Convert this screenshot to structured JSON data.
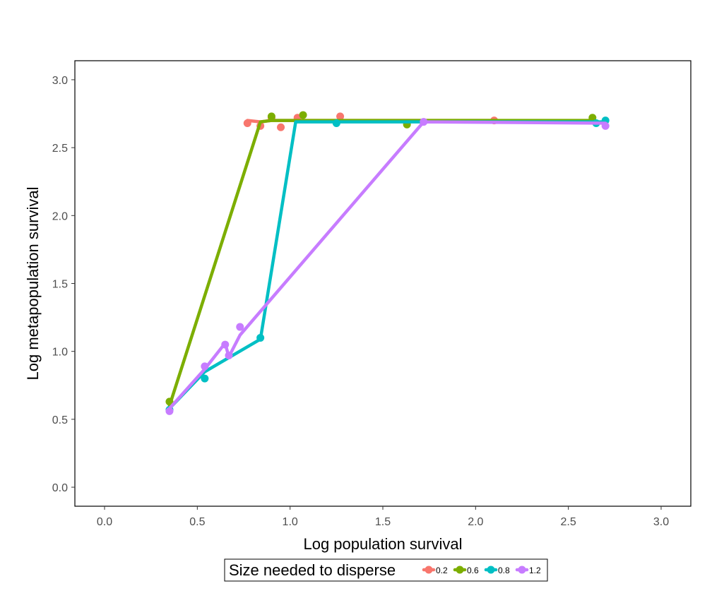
{
  "chart_data": {
    "type": "line",
    "title": "",
    "xlabel": "Log population survival",
    "ylabel": "Log metapopulation survival",
    "xlim": [
      -0.16,
      3.16
    ],
    "ylim": [
      -0.14,
      3.14
    ],
    "x_ticks": [
      "0.0",
      "0.5",
      "1.0",
      "1.5",
      "2.0",
      "2.5",
      "3.0"
    ],
    "y_ticks": [
      "0.0",
      "0.5",
      "1.0",
      "1.5",
      "2.0",
      "2.5",
      "3.0"
    ],
    "grid": false,
    "legend": {
      "title": "Size needed to disperse",
      "position": "bottom"
    },
    "series": [
      {
        "name": "0.2",
        "color": "#F8766D",
        "points": [
          [
            0.77,
            2.68
          ],
          [
            0.84,
            2.66
          ],
          [
            0.9,
            2.72
          ],
          [
            0.95,
            2.65
          ],
          [
            1.04,
            2.72
          ],
          [
            1.27,
            2.73
          ],
          [
            2.1,
            2.7
          ]
        ],
        "line": [
          [
            0.77,
            2.7
          ],
          [
            0.84,
            2.69
          ],
          [
            0.9,
            2.7
          ],
          [
            0.95,
            2.7
          ],
          [
            1.04,
            2.7
          ],
          [
            1.27,
            2.7
          ],
          [
            2.1,
            2.7
          ]
        ]
      },
      {
        "name": "0.6",
        "color": "#7CAE00",
        "points": [
          [
            0.35,
            0.63
          ],
          [
            0.9,
            2.73
          ],
          [
            1.07,
            2.74
          ],
          [
            1.63,
            2.67
          ],
          [
            2.63,
            2.72
          ]
        ],
        "line": [
          [
            0.35,
            0.6
          ],
          [
            0.84,
            2.69
          ],
          [
            0.9,
            2.7
          ],
          [
            1.07,
            2.7
          ],
          [
            1.63,
            2.7
          ],
          [
            2.63,
            2.7
          ]
        ]
      },
      {
        "name": "0.8",
        "color": "#00BFC4",
        "points": [
          [
            0.35,
            0.57
          ],
          [
            0.54,
            0.8
          ],
          [
            0.84,
            1.1
          ],
          [
            1.25,
            2.68
          ],
          [
            2.65,
            2.68
          ],
          [
            2.7,
            2.7
          ]
        ],
        "line": [
          [
            0.35,
            0.58
          ],
          [
            0.54,
            0.85
          ],
          [
            0.84,
            1.09
          ],
          [
            1.03,
            2.69
          ],
          [
            1.25,
            2.69
          ],
          [
            2.65,
            2.69
          ],
          [
            2.7,
            2.69
          ]
        ]
      },
      {
        "name": "1.2",
        "color": "#C77CFF",
        "points": [
          [
            0.35,
            0.56
          ],
          [
            0.54,
            0.89
          ],
          [
            0.65,
            1.05
          ],
          [
            0.67,
            0.97
          ],
          [
            0.73,
            1.18
          ],
          [
            1.72,
            2.69
          ],
          [
            2.7,
            2.66
          ]
        ],
        "line": [
          [
            0.35,
            0.58
          ],
          [
            0.54,
            0.87
          ],
          [
            0.65,
            1.06
          ],
          [
            0.67,
            0.96
          ],
          [
            0.73,
            1.12
          ],
          [
            1.72,
            2.69
          ],
          [
            2.7,
            2.68
          ]
        ]
      }
    ]
  }
}
